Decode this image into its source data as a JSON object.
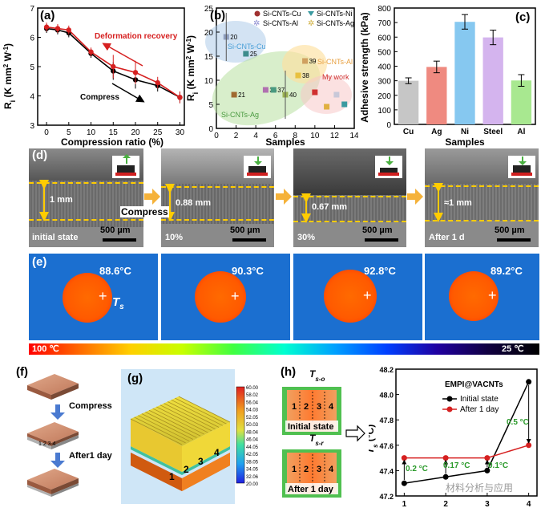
{
  "panel_labels": {
    "a": "(a)",
    "b": "(b)",
    "c": "(c)",
    "d": "(d)",
    "e": "(e)",
    "f": "(f)",
    "g": "(g)",
    "h": "(h)"
  },
  "panel_a": {
    "chart_data": {
      "type": "line",
      "xlabel": "Compression ratio (%)",
      "ylabel": "R_i (K mm² W⁻¹)",
      "xlim": [
        -2,
        31
      ],
      "ylim": [
        3,
        7
      ],
      "xticks": [
        "0",
        "5",
        "10",
        "15",
        "20",
        "25",
        "30"
      ],
      "yticks": [
        "3",
        "4",
        "5",
        "6",
        "7"
      ],
      "series": [
        {
          "name": "Compress",
          "color": "#000000",
          "x": [
            0,
            2.5,
            5,
            10,
            15,
            20,
            25,
            30
          ],
          "y": [
            6.3,
            6.25,
            6.15,
            5.45,
            4.85,
            4.55,
            4.35,
            3.95
          ],
          "err": [
            0.15,
            0.15,
            0.15,
            0.15,
            0.3,
            0.3,
            0.2,
            0.2
          ]
        },
        {
          "name": "Deformation recovery",
          "color": "#d62020",
          "x": [
            0,
            2.5,
            5,
            10,
            15,
            20,
            25,
            30
          ],
          "y": [
            6.35,
            6.3,
            6.25,
            5.5,
            5.0,
            4.8,
            4.45,
            3.95
          ],
          "err": [
            0.15,
            0.15,
            0.15,
            0.15,
            0.4,
            0.4,
            0.2,
            0.2
          ]
        }
      ],
      "annotations": [
        "Deformation recovery",
        "Compress"
      ]
    }
  },
  "panel_b": {
    "chart_data": {
      "type": "scatter",
      "xlabel": "Samples",
      "ylabel": "R_i (K mm² W⁻¹)",
      "xlim": [
        0,
        14
      ],
      "ylim": [
        0,
        25
      ],
      "xticks": [
        "0",
        "2",
        "4",
        "6",
        "8",
        "10",
        "12",
        "14"
      ],
      "yticks": [
        "0",
        "5",
        "10",
        "15",
        "20",
        "25"
      ],
      "legend": [
        "Si-CNTs-Cu",
        "Si-CNTs-Ni",
        "Si-CNTs-Al",
        "Si-CNTs-Ag"
      ],
      "points": [
        {
          "x": 1,
          "y": 19,
          "label": "20",
          "color": "#8f9fbf"
        },
        {
          "x": 3,
          "y": 15.5,
          "label": "25",
          "color": "#3d8c8c"
        },
        {
          "x": 1.8,
          "y": 7,
          "label": "21",
          "color": "#a06a30"
        },
        {
          "x": 5,
          "y": 8,
          "label": "36",
          "color": "#b070b0"
        },
        {
          "x": 5.8,
          "y": 8,
          "label": "37",
          "color": "#4a9a80"
        },
        {
          "x": 7,
          "y": 7,
          "label": "40",
          "color": "#9ab050"
        },
        {
          "x": 9,
          "y": 14,
          "label": "39",
          "color": "#d0a060"
        },
        {
          "x": 8.3,
          "y": 11,
          "label": "38",
          "color": "#e8c040"
        },
        {
          "x": 10,
          "y": 7.5,
          "label": "",
          "color": "#d03030"
        },
        {
          "x": 11.2,
          "y": 4.5,
          "label": "",
          "color": "#e0b040"
        },
        {
          "x": 12.2,
          "y": 7,
          "label": "",
          "color": "#c8c8d8"
        },
        {
          "x": 13,
          "y": 5,
          "label": "",
          "color": "#3a9aa0"
        }
      ],
      "region_labels": [
        "Si-CNTs-Cu",
        "Si-CNTs-Al",
        "Si-CNTs-Ag",
        "My work"
      ]
    }
  },
  "panel_c": {
    "chart_data": {
      "type": "bar",
      "xlabel": "Samples",
      "ylabel": "Adhesive strength (kPa)",
      "ylim": [
        0,
        800
      ],
      "categories": [
        "Cu",
        "Ag",
        "Ni",
        "Steel",
        "Al"
      ],
      "values": [
        300,
        395,
        705,
        598,
        302
      ],
      "errors": [
        20,
        40,
        50,
        50,
        40
      ],
      "colors": [
        "#c6c6c6",
        "#ef8a80",
        "#86c8f0",
        "#d4b4ee",
        "#a8e890"
      ],
      "yticks": [
        "0",
        "100",
        "200",
        "300",
        "400",
        "500",
        "600",
        "700",
        "800"
      ]
    }
  },
  "panel_d": {
    "images": [
      {
        "thickness": "1 mm",
        "state": "initial state",
        "scale": "500 µm"
      },
      {
        "thickness": "0.88 mm",
        "state": "10%",
        "scale": "500 µm"
      },
      {
        "thickness": "0.67 mm",
        "state": "30%",
        "scale": "500 µm"
      },
      {
        "thickness": "≈1 mm",
        "state": "After 1 d",
        "scale": "500 µm"
      }
    ],
    "compress_label": "Compress"
  },
  "panel_e": {
    "temps": [
      "88.6°C",
      "90.3°C",
      "92.8°C",
      "89.2°C"
    ],
    "ts_label": "T",
    "ts_sub": "s",
    "colorbar_hot": "100 ℃",
    "colorbar_cold": "25 ℃"
  },
  "panel_f": {
    "compress": "Compress",
    "after": "After1 day",
    "numbers": "1 2 3 4"
  },
  "panel_g": {
    "numbers": [
      "1",
      "2",
      "3",
      "4"
    ],
    "colorbar": [
      "60.00",
      "58.02",
      "56.04",
      "54.03",
      "52.05",
      "50.03",
      "48.04",
      "46.04",
      "44.05",
      "42.05",
      "38.05",
      "34.05",
      "32.06",
      "20.00"
    ]
  },
  "panel_h": {
    "top_label": "T",
    "top_sub": "s-o",
    "bottom_label": "T",
    "bottom_sub": "s-r",
    "initial": "Initial state",
    "after": "After 1 day",
    "numbers": [
      "1",
      "2",
      "3",
      "4"
    ]
  },
  "panel_h_chart": {
    "chart_data": {
      "type": "line",
      "title": "EMPI@VACNTs",
      "xlabel": "",
      "ylabel": "T_s (°C)",
      "xlim": [
        0.8,
        4.2
      ],
      "ylim": [
        47.2,
        48.2
      ],
      "xticks": [
        "1",
        "2",
        "3",
        "4"
      ],
      "yticks": [
        "47.2",
        "47.4",
        "47.6",
        "47.8",
        "48.0",
        "48.2"
      ],
      "series": [
        {
          "name": "Initial state",
          "color": "#000000",
          "x": [
            1,
            2,
            3,
            4
          ],
          "y": [
            47.3,
            47.35,
            47.4,
            48.1
          ]
        },
        {
          "name": "After 1 day",
          "color": "#d62020",
          "x": [
            1,
            2,
            3,
            4
          ],
          "y": [
            47.5,
            47.5,
            47.5,
            47.6
          ]
        }
      ],
      "annotations": [
        "0.2 °C",
        "0.17 °C",
        "0.1°C",
        "0.5 °C"
      ]
    }
  },
  "watermark": "材料分析与应用"
}
